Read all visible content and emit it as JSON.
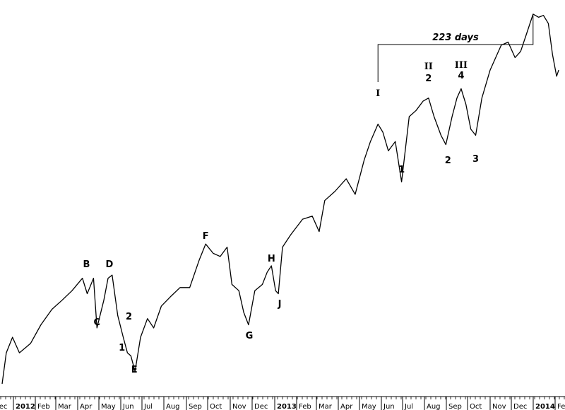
{
  "chart_data": {
    "type": "line",
    "title": "",
    "xlabel": "",
    "ylabel": "",
    "grid": false,
    "x_tick_labels": [
      "Dec",
      "2012",
      "Feb",
      "Mar",
      "Apr",
      "May",
      "Jun",
      "Jul",
      "Aug",
      "Sep",
      "Oct",
      "Nov",
      "Dec",
      "2013",
      "Feb",
      "Mar",
      "Apr",
      "May",
      "Jun",
      "Jul",
      "Aug",
      "Sep",
      "Oct",
      "Nov",
      "Dec",
      "2014",
      "Feb"
    ],
    "series": [
      {
        "color": "#000000",
        "x": [
          "2011-11-25",
          "2011-12-01",
          "2011-12-10",
          "2011-12-20",
          "2012-01-05",
          "2012-01-20",
          "2012-02-05",
          "2012-02-20",
          "2012-03-05",
          "2012-03-20",
          "2012-03-27",
          "2012-04-05",
          "2012-04-10",
          "2012-04-20",
          "2012-04-26",
          "2012-05-02",
          "2012-05-10",
          "2012-05-18",
          "2012-05-24",
          "2012-05-29",
          "2012-06-04",
          "2012-06-12",
          "2012-06-22",
          "2012-07-01",
          "2012-07-12",
          "2012-07-25",
          "2012-08-08",
          "2012-08-22",
          "2012-09-05",
          "2012-09-14",
          "2012-09-25",
          "2012-10-05",
          "2012-10-15",
          "2012-10-22",
          "2012-11-01",
          "2012-11-08",
          "2012-11-15",
          "2012-11-24",
          "2012-12-05",
          "2012-12-12",
          "2012-12-18",
          "2012-12-24",
          "2012-12-28",
          "2013-01-03",
          "2013-01-15",
          "2013-02-01",
          "2013-02-15",
          "2013-02-25",
          "2013-03-05",
          "2013-03-20",
          "2013-04-05",
          "2013-04-18",
          "2013-05-01",
          "2013-05-10",
          "2013-05-21",
          "2013-05-28",
          "2013-06-05",
          "2013-06-15",
          "2013-06-24",
          "2013-07-05",
          "2013-07-15",
          "2013-07-25",
          "2013-08-02",
          "2013-08-10",
          "2013-08-20",
          "2013-08-27",
          "2013-09-05",
          "2013-09-12",
          "2013-09-18",
          "2013-09-25",
          "2013-10-02",
          "2013-10-09",
          "2013-10-18",
          "2013-10-30",
          "2013-11-15",
          "2013-11-25",
          "2013-12-05",
          "2013-12-13",
          "2013-12-20",
          "2013-12-31",
          "2014-01-08",
          "2014-01-15",
          "2014-01-22",
          "2014-01-28",
          "2014-02-03",
          "2014-02-06"
        ],
        "y": [
          1250,
          1300,
          1325,
          1300,
          1315,
          1345,
          1370,
          1385,
          1400,
          1420,
          1395,
          1420,
          1340,
          1385,
          1420,
          1425,
          1360,
          1325,
          1300,
          1295,
          1270,
          1325,
          1355,
          1340,
          1375,
          1390,
          1405,
          1405,
          1450,
          1475,
          1460,
          1455,
          1470,
          1410,
          1400,
          1365,
          1345,
          1400,
          1410,
          1430,
          1440,
          1400,
          1395,
          1470,
          1490,
          1515,
          1520,
          1495,
          1545,
          1560,
          1580,
          1555,
          1610,
          1640,
          1668,
          1655,
          1625,
          1640,
          1575,
          1680,
          1690,
          1705,
          1710,
          1680,
          1650,
          1635,
          1680,
          1710,
          1725,
          1700,
          1660,
          1650,
          1710,
          1755,
          1795,
          1800,
          1775,
          1785,
          1808,
          1845,
          1840,
          1843,
          1830,
          1780,
          1745,
          1755
        ]
      }
    ],
    "annotations": [
      {
        "label": "B",
        "date": "2012-03-28"
      },
      {
        "label": "D",
        "date": "2012-04-27"
      },
      {
        "label": "C",
        "date": "2012-04-10"
      },
      {
        "label": "2",
        "date": "2012-05-20"
      },
      {
        "label": "1",
        "date": "2012-05-16"
      },
      {
        "label": "E",
        "date": "2012-06-04"
      },
      {
        "label": "F",
        "date": "2012-09-14"
      },
      {
        "label": "G",
        "date": "2012-11-16"
      },
      {
        "label": "H",
        "date": "2012-12-18"
      },
      {
        "label": "J",
        "date": "2012-12-30"
      },
      {
        "label": "I",
        "date": "2013-05-21"
      },
      {
        "label": "1",
        "date": "2013-06-24"
      },
      {
        "label": "II",
        "date": "2013-08-02"
      },
      {
        "label": "2",
        "date": "2013-08-02"
      },
      {
        "label": "2",
        "date": "2013-08-27"
      },
      {
        "label": "III",
        "date": "2013-09-18"
      },
      {
        "label": "4",
        "date": "2013-09-18"
      },
      {
        "label": "3",
        "date": "2013-10-09"
      }
    ],
    "span_annotation": {
      "label": "223 days",
      "from": "2013-05-21",
      "to": "2013-12-31"
    }
  }
}
